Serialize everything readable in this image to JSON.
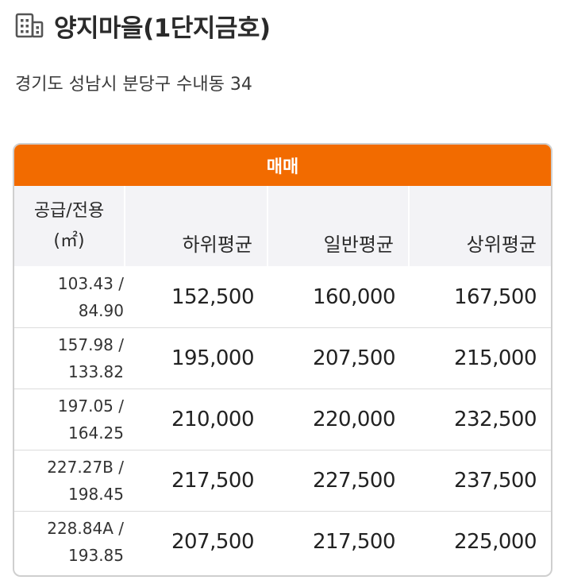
{
  "complex": {
    "name": "양지마을(1단지금호)",
    "address": "경기도 성남시 분당구 수내동 34"
  },
  "table": {
    "trade_type": "매매",
    "area_header_line1": "공급/전용",
    "area_header_line2": "(㎡)",
    "columns": [
      "하위평균",
      "일반평균",
      "상위평균"
    ],
    "rows": [
      {
        "supply": "103.43 /",
        "exclusive": "84.90",
        "low": "152,500",
        "mid": "160,000",
        "high": "167,500"
      },
      {
        "supply": "157.98 /",
        "exclusive": "133.82",
        "low": "195,000",
        "mid": "207,500",
        "high": "215,000"
      },
      {
        "supply": "197.05 /",
        "exclusive": "164.25",
        "low": "210,000",
        "mid": "220,000",
        "high": "232,500"
      },
      {
        "supply": "227.27B /",
        "exclusive": "198.45",
        "low": "217,500",
        "mid": "227,500",
        "high": "237,500"
      },
      {
        "supply": "228.84A /",
        "exclusive": "193.85",
        "low": "207,500",
        "mid": "217,500",
        "high": "225,000"
      }
    ]
  },
  "icons": {
    "title_icon": "building-icon"
  },
  "colors": {
    "accent": "#f26b00",
    "header_bg": "#f3f3f6",
    "border": "#cfcfcf"
  }
}
